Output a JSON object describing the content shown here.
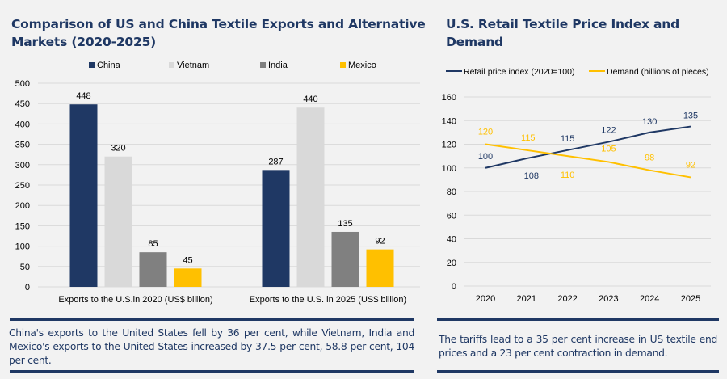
{
  "panels": {
    "left": {
      "title": "Comparison of US and China Textile Exports and Alternative Markets (2020-2025)",
      "note": "China's exports to the United States fell by 36 per cent, while Vietnam, India and Mexico's exports to the United States increased by 37.5 per cent, 58.8 per cent, 104 per cent."
    },
    "right": {
      "title": "U.S. Retail Textile Price Index and Demand",
      "note": "The tariffs lead to a 35 per cent increase in US textile end prices and a 23 per cent contraction in demand."
    }
  },
  "colors": {
    "navy": "#1f3864",
    "light_gray": "#d9d9d9",
    "gray": "#808080",
    "gold": "#ffc000",
    "grid": "#d9d9d9"
  },
  "chart_data": [
    {
      "type": "bar",
      "title": "Comparison of US and China Textile Exports and Alternative Markets (2020-2025)",
      "categories": [
        "Exports to the U.S.in 2020 (US$ billion)",
        "Exports to the U.S. in 2025 (US$ billion)"
      ],
      "series": [
        {
          "name": "China",
          "values": [
            448,
            287
          ],
          "color": "#1f3864"
        },
        {
          "name": "Vietnam",
          "values": [
            320,
            440
          ],
          "color": "#d9d9d9"
        },
        {
          "name": "India",
          "values": [
            85,
            135
          ],
          "color": "#808080"
        },
        {
          "name": "Mexico",
          "values": [
            45,
            92
          ],
          "color": "#ffc000"
        }
      ],
      "ylim": [
        0,
        500
      ],
      "yticks": [
        0,
        50,
        100,
        150,
        200,
        250,
        300,
        350,
        400,
        450,
        500
      ],
      "xlabel": "",
      "ylabel": "",
      "grid": true,
      "legend": "top",
      "data_labels": true
    },
    {
      "type": "line",
      "title": "U.S. Retail Textile Price Index and Demand",
      "x": [
        "2020",
        "2021",
        "2022",
        "2023",
        "2024",
        "2025"
      ],
      "series": [
        {
          "name": "Retail price index (2020=100)",
          "values": [
            100,
            108,
            115,
            122,
            130,
            135
          ],
          "color": "#1f3864"
        },
        {
          "name": "Demand (billions of pieces)",
          "values": [
            120,
            115,
            110,
            105,
            98,
            92
          ],
          "color": "#ffc000"
        }
      ],
      "ylim": [
        0,
        160
      ],
      "yticks": [
        0,
        20,
        40,
        60,
        80,
        100,
        120,
        140,
        160
      ],
      "xlabel": "",
      "ylabel": "",
      "grid": true,
      "legend": "top",
      "data_labels": true
    }
  ]
}
